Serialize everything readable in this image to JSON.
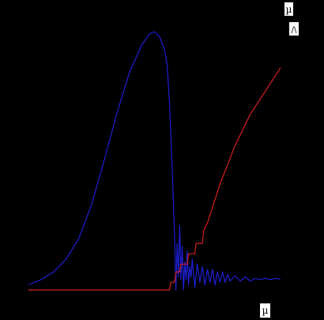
{
  "chart_data": {
    "type": "line",
    "title": "",
    "xlabel": "µ",
    "ylabel": "",
    "legend_mark_top": "µ",
    "legend_mark_bottom": "/\\",
    "grid": false,
    "legend": "top-right",
    "background": "#000000",
    "series": [
      {
        "color": "#1f1fd6",
        "x": [
          0.0,
          0.05,
          0.1,
          0.15,
          0.2,
          0.25,
          0.3,
          0.35,
          0.4,
          0.45,
          0.48,
          0.5,
          0.52,
          0.54,
          0.55,
          0.56,
          0.57,
          0.58,
          0.585,
          0.59,
          0.595,
          0.6,
          0.605,
          0.61,
          0.615,
          0.62,
          0.625,
          0.63,
          0.635,
          0.64,
          0.645,
          0.65,
          0.66,
          0.67,
          0.68,
          0.69,
          0.7,
          0.71,
          0.72,
          0.73,
          0.74,
          0.75,
          0.76,
          0.77,
          0.78,
          0.79,
          0.8,
          0.82,
          0.84,
          0.86,
          0.88,
          0.9,
          0.92,
          0.94,
          0.96,
          0.98,
          1.0
        ],
        "values": [
          0.02,
          0.04,
          0.07,
          0.12,
          0.2,
          0.33,
          0.5,
          0.68,
          0.84,
          0.95,
          0.99,
          1.0,
          0.98,
          0.93,
          0.87,
          0.72,
          0.48,
          0.2,
          0.0,
          0.18,
          0.05,
          0.25,
          0.04,
          0.17,
          0.0,
          0.11,
          0.04,
          0.15,
          0.02,
          0.09,
          0.05,
          0.12,
          0.01,
          0.1,
          0.03,
          0.09,
          0.02,
          0.08,
          0.03,
          0.08,
          0.02,
          0.07,
          0.03,
          0.07,
          0.03,
          0.06,
          0.035,
          0.055,
          0.035,
          0.05,
          0.035,
          0.045,
          0.04,
          0.045,
          0.04,
          0.045,
          0.042
        ]
      },
      {
        "color": "#d61f1f",
        "x": [
          0.0,
          0.56,
          0.565,
          0.58,
          0.585,
          0.6,
          0.605,
          0.63,
          0.635,
          0.66,
          0.665,
          0.69,
          0.695,
          0.71,
          0.72,
          0.73,
          0.74,
          0.75,
          0.76,
          0.78,
          0.8,
          0.82,
          0.84,
          0.86,
          0.88,
          0.9,
          0.92,
          0.94,
          0.96,
          0.98,
          1.0
        ],
        "values": [
          0.0,
          0.0,
          0.03,
          0.03,
          0.07,
          0.07,
          0.1,
          0.1,
          0.14,
          0.14,
          0.18,
          0.18,
          0.23,
          0.26,
          0.29,
          0.32,
          0.35,
          0.38,
          0.41,
          0.46,
          0.51,
          0.56,
          0.6,
          0.64,
          0.68,
          0.71,
          0.74,
          0.77,
          0.8,
          0.83,
          0.86
        ]
      }
    ]
  }
}
